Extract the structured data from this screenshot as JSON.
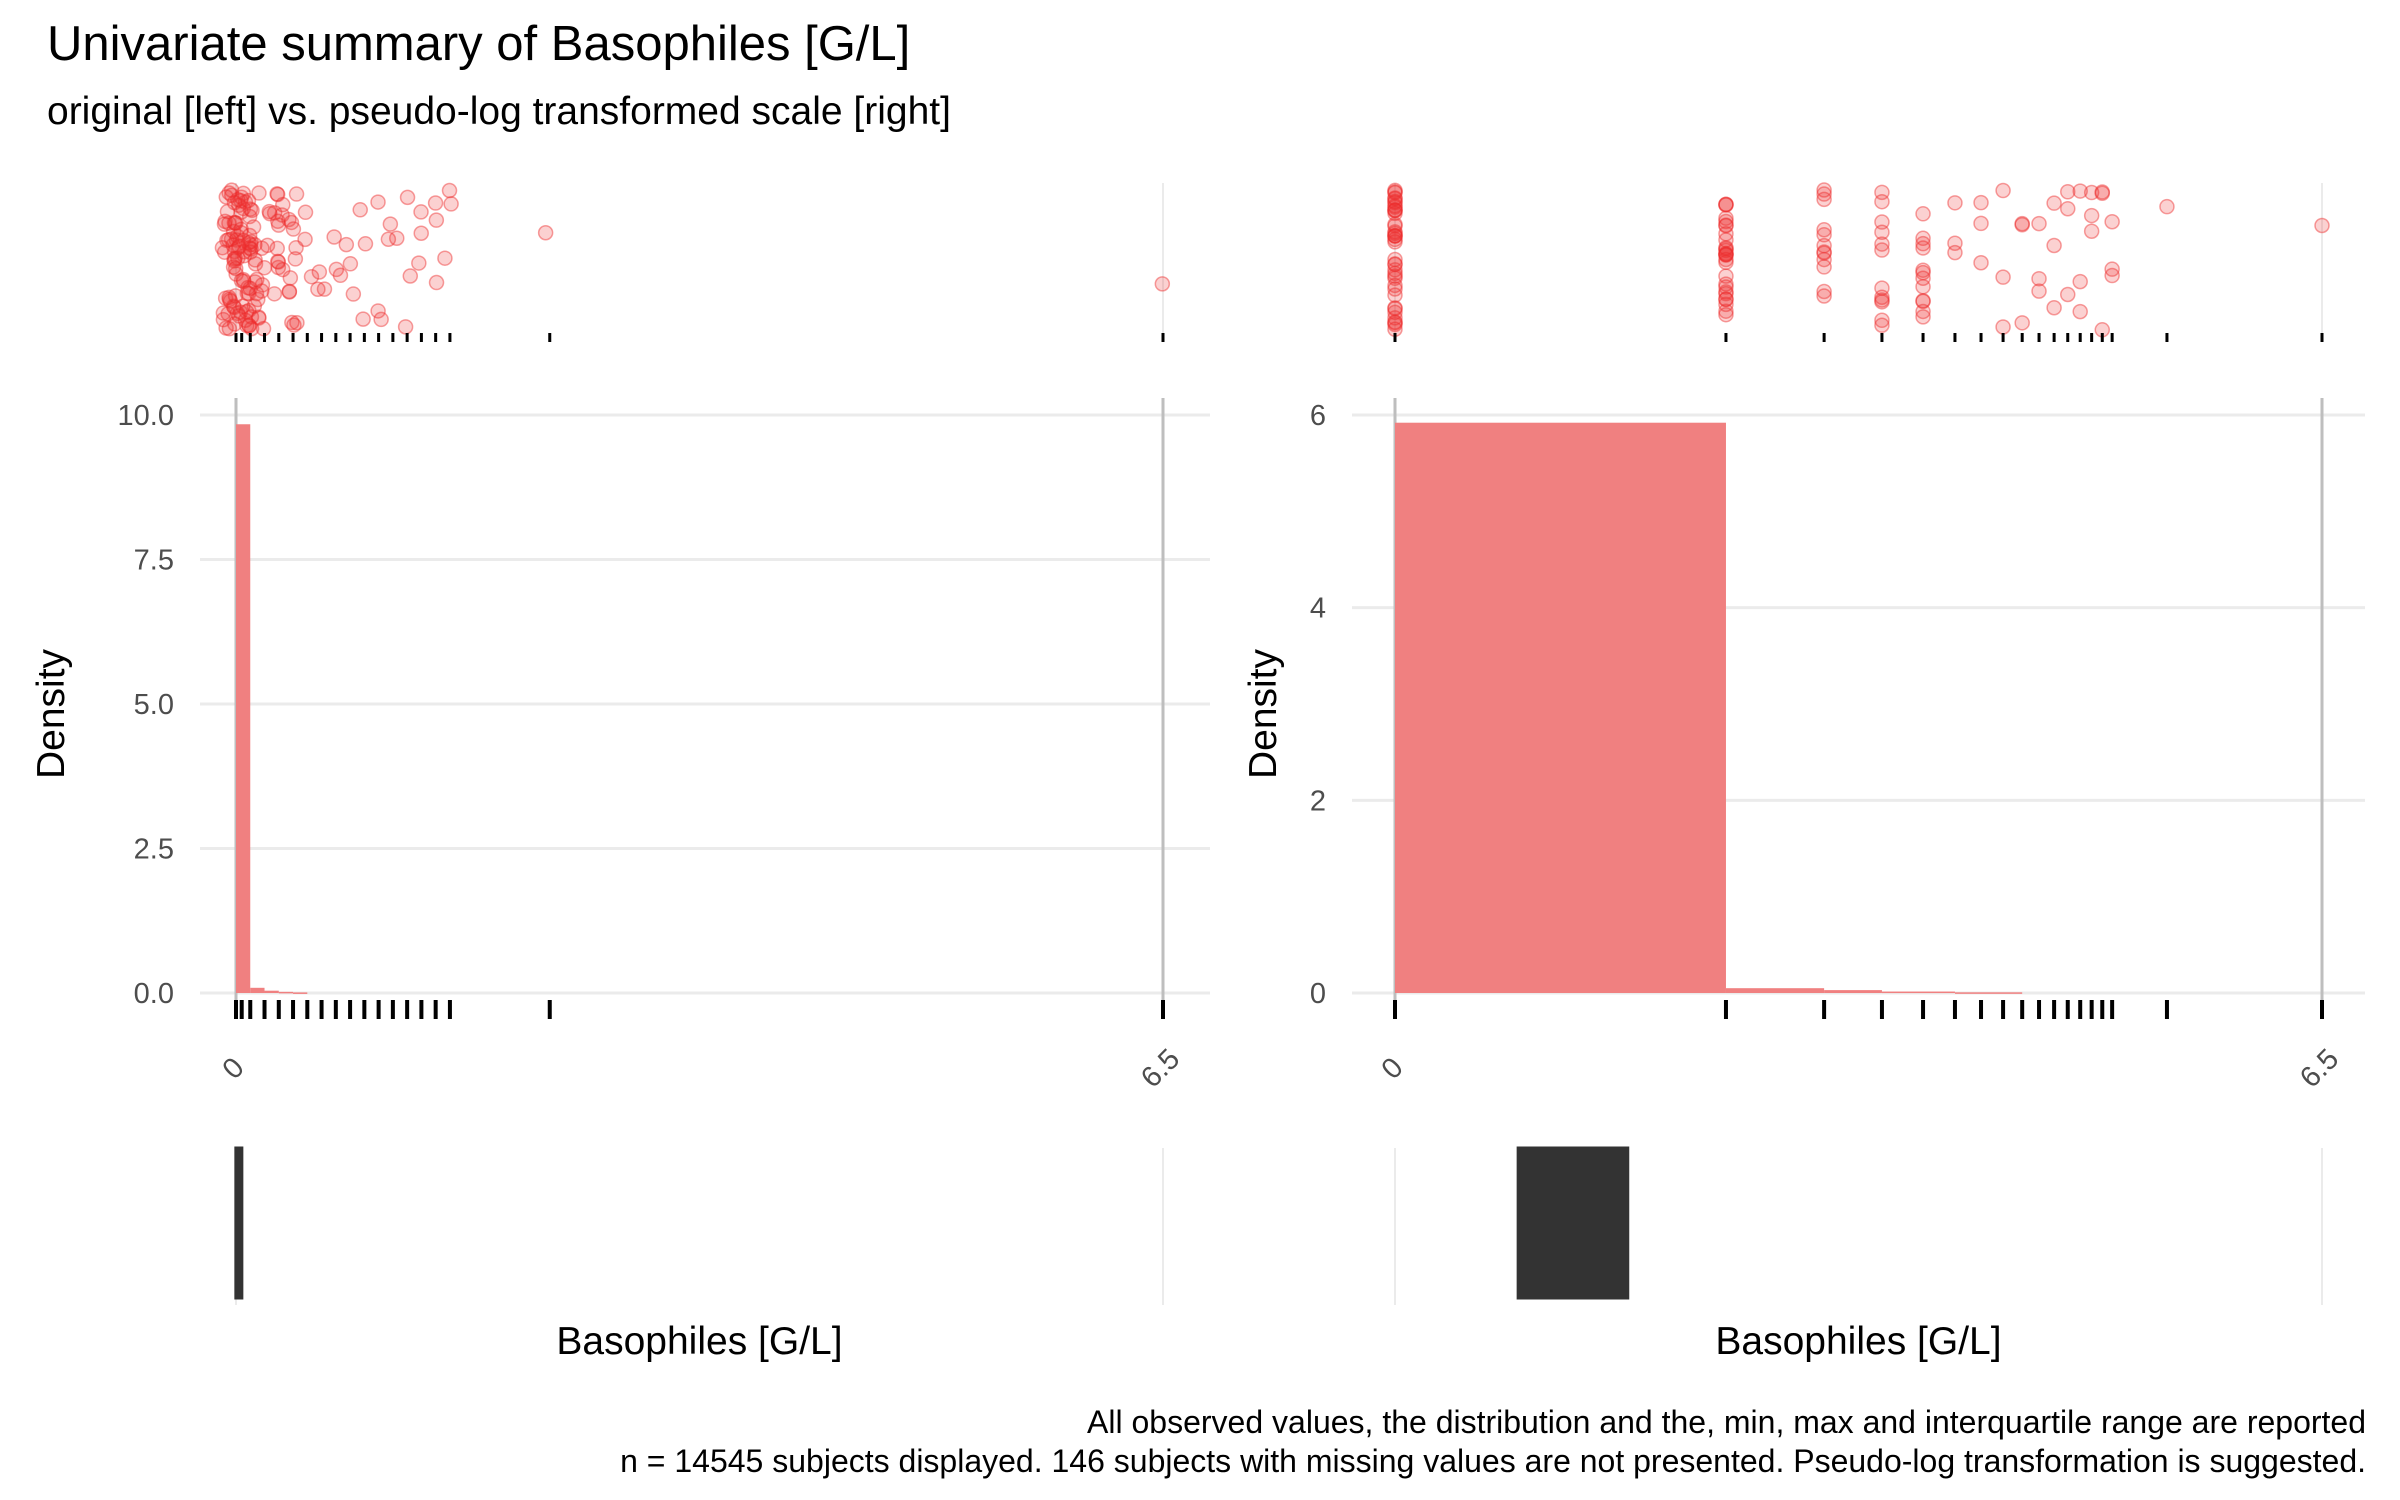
{
  "title": "Univariate summary of Basophiles [G/L]",
  "subtitle": "original [left] vs. pseudo-log transformed scale [right]",
  "caption": [
    "All observed values, the distribution and the, min, max and interquartile range are reported",
    "n = 14545 subjects displayed. 146 subjects with missing values are not presented. Pseudo-log transformation is suggested."
  ],
  "colors": {
    "points": "#ee2c2c",
    "bars": "#f08080",
    "ticks": "#000000",
    "grid": "#ebebeb",
    "minmax": "#bebebe",
    "box": "#333333"
  },
  "chart_data": [
    {
      "type": "bar",
      "panel": "left",
      "scale": "original",
      "xlabel": "Basophiles [G/L]",
      "ylabel": "Density",
      "xlim": [
        0,
        6.5
      ],
      "ylim": [
        0,
        10
      ],
      "x_tick_labels": [
        "0",
        "6.5"
      ],
      "y_tick_labels": [
        "0.0",
        "2.5",
        "5.0",
        "7.5",
        "10.0"
      ],
      "y_ticks": [
        0,
        2.5,
        5,
        7.5,
        10
      ],
      "bars": [
        {
          "x0": 0,
          "x1": 0.1,
          "density": 9.84
        },
        {
          "x0": 0.1,
          "x1": 0.2,
          "density": 0.09
        },
        {
          "x0": 0.2,
          "x1": 0.3,
          "density": 0.04
        },
        {
          "x0": 0.3,
          "x1": 0.4,
          "density": 0.02
        },
        {
          "x0": 0.4,
          "x1": 0.5,
          "density": 0.01
        }
      ],
      "observed_values": [
        0,
        0.04,
        0.1,
        0.2,
        0.3,
        0.4,
        0.5,
        0.6,
        0.7,
        0.8,
        0.9,
        1.0,
        1.1,
        1.2,
        1.3,
        1.4,
        1.5,
        2.2,
        6.5
      ],
      "min": 0,
      "max": 6.5,
      "q1": 0.02,
      "q3": 0.05,
      "grid": true
    },
    {
      "type": "bar",
      "panel": "right",
      "scale": "pseudo-log",
      "xlabel": "Basophiles [G/L]",
      "ylabel": "Density",
      "xlim": [
        0,
        6.5
      ],
      "ylim": [
        0,
        6
      ],
      "x_tick_labels": [
        "0",
        "6.5"
      ],
      "y_tick_labels": [
        "0",
        "2",
        "4",
        "6"
      ],
      "y_ticks": [
        0,
        2,
        4,
        6
      ],
      "bars": [
        {
          "x0": 0,
          "x1": 0.1,
          "density": 5.92
        },
        {
          "x0": 0.1,
          "x1": 0.2,
          "density": 0.05
        },
        {
          "x0": 0.2,
          "x1": 0.3,
          "density": 0.03
        },
        {
          "x0": 0.3,
          "x1": 0.5,
          "density": 0.015
        },
        {
          "x0": 0.5,
          "x1": 0.8,
          "density": 0.007
        }
      ],
      "observed_values": [
        0,
        0.1,
        0.2,
        0.3,
        0.4,
        0.5,
        0.6,
        0.7,
        0.8,
        0.9,
        1.0,
        1.1,
        1.2,
        1.3,
        1.4,
        1.5,
        2.2,
        6.5
      ],
      "min": 0,
      "max": 6.5,
      "q1": 0.02,
      "q3": 0.05,
      "grid": true
    }
  ]
}
